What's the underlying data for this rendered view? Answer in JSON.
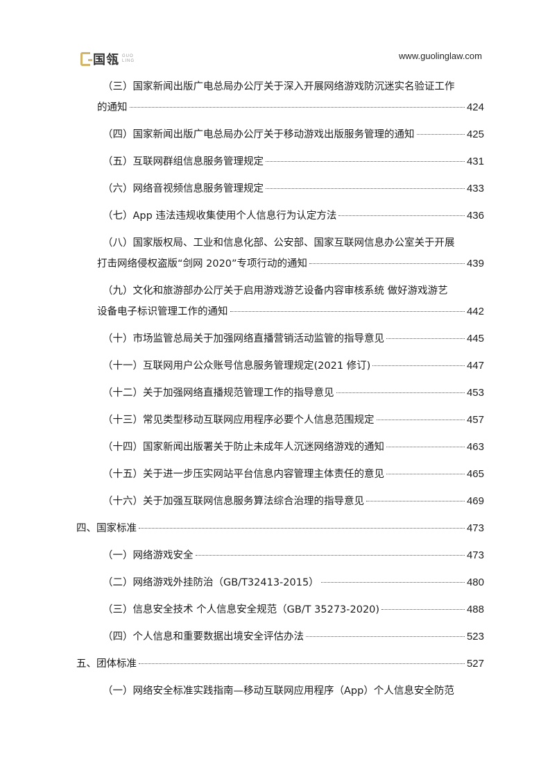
{
  "header": {
    "logo_cn": "国瓴",
    "logo_en": "GUO LING",
    "url": "www.guolinglaw.com"
  },
  "toc": [
    {
      "level": 2,
      "text": "（三）国家新闻出版广电总局办公厅关于深入开展网络游戏防沉迷实名验证工作",
      "continuation": "的通知",
      "page": "424"
    },
    {
      "level": 2,
      "text": "（四）国家新闻出版广电总局办公厅关于移动游戏出版服务管理的通知",
      "page": "425"
    },
    {
      "level": 2,
      "text": "（五）互联网群组信息服务管理规定",
      "page": "431"
    },
    {
      "level": 2,
      "text": "（六）网络音视频信息服务管理规定",
      "page": "433"
    },
    {
      "level": 2,
      "text": "（七）App 违法违规收集使用个人信息行为认定方法",
      "page": "436"
    },
    {
      "level": 2,
      "text": "（八）国家版权局、工业和信息化部、公安部、国家互联网信息办公室关于开展",
      "continuation": "打击网络侵权盗版“剑网 2020”专项行动的通知",
      "page": "439"
    },
    {
      "level": 2,
      "text": "（九）文化和旅游部办公厅关于启用游戏游艺设备内容审核系统 做好游戏游艺",
      "continuation": "设备电子标识管理工作的通知",
      "page": "442"
    },
    {
      "level": 2,
      "text": "（十）市场监管总局关于加强网络直播营销活动监管的指导意见",
      "page": "445"
    },
    {
      "level": 2,
      "text": "（十一）互联网用户公众账号信息服务管理规定(2021 修订)",
      "page": "447"
    },
    {
      "level": 2,
      "text": "（十二）关于加强网络直播规范管理工作的指导意见",
      "page": "453"
    },
    {
      "level": 2,
      "text": "（十三）常见类型移动互联网应用程序必要个人信息范围规定",
      "page": "457"
    },
    {
      "level": 2,
      "text": "（十四）国家新闻出版署关于防止未成年人沉迷网络游戏的通知",
      "page": "463"
    },
    {
      "level": 2,
      "text": "（十五）关于进一步压实网站平台信息内容管理主体责任的意见",
      "page": "465"
    },
    {
      "level": 2,
      "text": "（十六）关于加强互联网信息服务算法综合治理的指导意见",
      "page": "469"
    },
    {
      "level": 1,
      "text": "四、国家标准",
      "page": "473"
    },
    {
      "level": 2,
      "text": "（一）网络游戏安全",
      "page": "473"
    },
    {
      "level": 2,
      "text": "（二）网络游戏外挂防治（GB/T32413-2015）",
      "page": "480"
    },
    {
      "level": 2,
      "text": "（三）信息安全技术 个人信息安全规范（GB/T 35273-2020)",
      "page": "488"
    },
    {
      "level": 2,
      "text": "（四）个人信息和重要数据出境安全评估办法",
      "page": "523"
    },
    {
      "level": 1,
      "text": "五、团体标准",
      "page": "527"
    },
    {
      "level": 2,
      "text": "（一）网络安全标准实践指南—移动互联网应用程序（App）个人信息安全防范"
    }
  ]
}
